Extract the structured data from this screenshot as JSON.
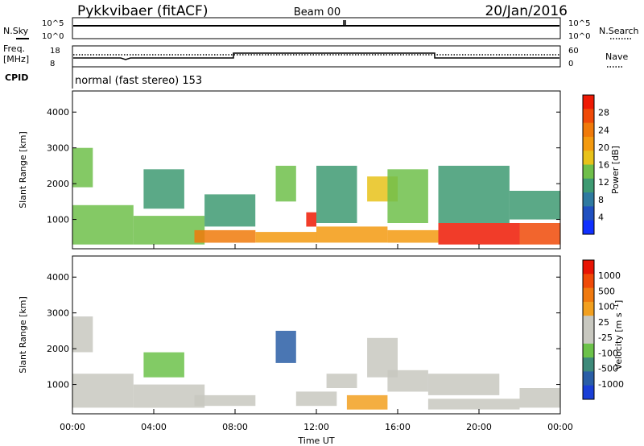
{
  "header": {
    "station": "Pykkvibaer (fitACF)",
    "beam": "Beam 00",
    "date": "20/Jan/2016"
  },
  "top_panels": {
    "nsky_label": "N.Sky",
    "nsky_ticks": [
      "10^5",
      "10^0"
    ],
    "nsearch_label": "N.Search",
    "nsearch_ticks": [
      "10^5",
      "10^0"
    ],
    "freq_label": "Freq.",
    "freq_unit": "[MHz]",
    "freq_ticks": [
      "18",
      "8"
    ],
    "nave_label": "Nave",
    "nave_ticks": [
      "60",
      "0"
    ],
    "cpid_label": "CPID",
    "cpid_value": "normal (fast stereo) 153"
  },
  "colors": {
    "power_scale": [
      "#1030ff",
      "#2050c0",
      "#2f7aa0",
      "#3e9a72",
      "#6fbf4a",
      "#e8c21a",
      "#f39a10",
      "#f07a0a",
      "#f04a08",
      "#ee1a04"
    ],
    "velocity_scale": [
      "#1a3fd6",
      "#2a5ea6",
      "#3e8a7a",
      "#6cc24a",
      "#c8c8c0",
      "#c8c8c0",
      "#f2a020",
      "#f07a10",
      "#f04a08",
      "#e81404"
    ]
  },
  "chart_data": [
    {
      "type": "heatmap",
      "title": "",
      "xlabel": "",
      "ylabel": "Slant Range [km]",
      "xlim": [
        0,
        24
      ],
      "ylim": [
        180,
        4590
      ],
      "yticks": [
        1000,
        2000,
        3000,
        4000
      ],
      "colorbar": {
        "label": "Power [dB]",
        "ticks": [
          "28",
          "24",
          "20",
          "16",
          "12",
          "8",
          "4"
        ],
        "range": [
          0,
          30
        ]
      },
      "series": [
        {
          "name": "",
          "values": [
            [
              0,
              3.0,
              300,
              1400,
              14
            ],
            [
              0,
              1.0,
              1900,
              3000,
              12
            ],
            [
              3.0,
              6.5,
              300,
              1100,
              14
            ],
            [
              3.5,
              5.5,
              1300,
              2400,
              10
            ],
            [
              6.0,
              9.0,
              350,
              700,
              22
            ],
            [
              6.5,
              9.0,
              800,
              1700,
              10
            ],
            [
              9.0,
              12.0,
              350,
              650,
              20
            ],
            [
              10.0,
              11.0,
              1500,
              2500,
              14
            ],
            [
              11.5,
              12.0,
              800,
              1200,
              28
            ],
            [
              12.0,
              15.5,
              350,
              800,
              20
            ],
            [
              12.0,
              14.0,
              900,
              2500,
              10
            ],
            [
              14.5,
              16.0,
              1500,
              2200,
              16
            ],
            [
              15.5,
              18.0,
              350,
              700,
              20
            ],
            [
              15.5,
              17.5,
              900,
              2400,
              12
            ],
            [
              18.0,
              22.0,
              300,
              900,
              28
            ],
            [
              18.0,
              21.5,
              900,
              2500,
              10
            ],
            [
              22.0,
              24.0,
              300,
              900,
              26
            ],
            [
              21.5,
              24.0,
              1000,
              1800,
              10
            ]
          ]
        }
      ]
    },
    {
      "type": "heatmap",
      "title": "",
      "xlabel": "Time UT",
      "ylabel": "Slant Range [km]",
      "xlim": [
        0,
        24
      ],
      "ylim": [
        180,
        4590
      ],
      "yticks": [
        1000,
        2000,
        3000,
        4000
      ],
      "xticks": [
        "00:00",
        "04:00",
        "08:00",
        "12:00",
        "16:00",
        "20:00",
        "00:00"
      ],
      "colorbar": {
        "label": "Velocity [m s^-1]",
        "ticks": [
          "1000",
          "500",
          "100",
          "25",
          "-25",
          "-100",
          "-500",
          "-1000"
        ],
        "range": [
          -1200,
          1200
        ]
      },
      "series": [
        {
          "name": "",
          "values": [
            [
              0,
              3.0,
              350,
              1300,
              -150
            ],
            [
              0,
              1.0,
              1900,
              2900,
              120
            ],
            [
              3.0,
              6.5,
              350,
              1000,
              -200
            ],
            [
              3.5,
              5.5,
              1200,
              1900,
              -300
            ],
            [
              6.0,
              9.0,
              400,
              700,
              -80
            ],
            [
              10.0,
              11.0,
              1600,
              2500,
              -900
            ],
            [
              11.0,
              13.0,
              400,
              800,
              -120
            ],
            [
              12.5,
              14.0,
              900,
              1300,
              -100
            ],
            [
              13.5,
              15.5,
              300,
              700,
              400
            ],
            [
              14.5,
              16.0,
              1200,
              2300,
              -200
            ],
            [
              15.5,
              17.5,
              800,
              1400,
              -150
            ],
            [
              17.5,
              21.0,
              700,
              1300,
              0
            ],
            [
              17.5,
              22.0,
              300,
              600,
              -150
            ],
            [
              22.0,
              24.0,
              350,
              900,
              -100
            ]
          ]
        }
      ]
    }
  ]
}
